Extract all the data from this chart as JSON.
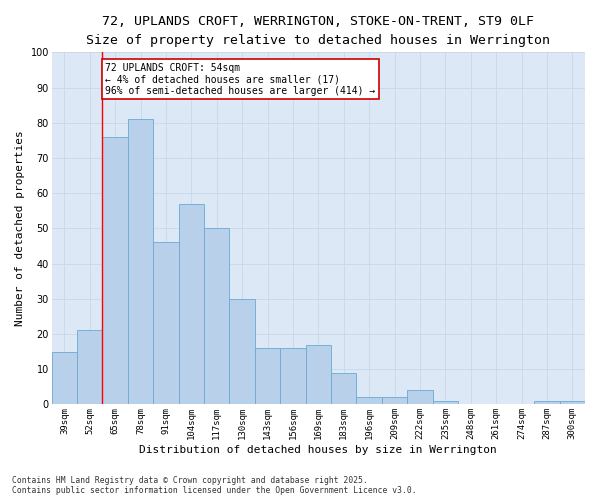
{
  "title_line1": "72, UPLANDS CROFT, WERRINGTON, STOKE-ON-TRENT, ST9 0LF",
  "title_line2": "Size of property relative to detached houses in Werrington",
  "xlabel": "Distribution of detached houses by size in Werrington",
  "ylabel": "Number of detached properties",
  "categories": [
    "39sqm",
    "52sqm",
    "65sqm",
    "78sqm",
    "91sqm",
    "104sqm",
    "117sqm",
    "130sqm",
    "143sqm",
    "156sqm",
    "169sqm",
    "183sqm",
    "196sqm",
    "209sqm",
    "222sqm",
    "235sqm",
    "248sqm",
    "261sqm",
    "274sqm",
    "287sqm",
    "300sqm"
  ],
  "values": [
    15,
    21,
    76,
    81,
    46,
    57,
    50,
    30,
    16,
    16,
    17,
    9,
    2,
    2,
    4,
    1,
    0,
    0,
    0,
    1,
    1
  ],
  "bar_color": "#b8d0ea",
  "bar_edge_color": "#6aaad4",
  "red_line_index": 1.5,
  "annotation_text": "72 UPLANDS CROFT: 54sqm\n← 4% of detached houses are smaller (17)\n96% of semi-detached houses are larger (414) →",
  "annotation_box_color": "#ffffff",
  "annotation_box_edge_color": "#cc0000",
  "ylim": [
    0,
    100
  ],
  "yticks": [
    0,
    10,
    20,
    30,
    40,
    50,
    60,
    70,
    80,
    90,
    100
  ],
  "grid_color": "#c8d8ea",
  "background_color": "#dce8f5",
  "footer_line1": "Contains HM Land Registry data © Crown copyright and database right 2025.",
  "footer_line2": "Contains public sector information licensed under the Open Government Licence v3.0.",
  "title_fontsize": 9.5,
  "subtitle_fontsize": 8.5,
  "tick_fontsize": 6.5,
  "ylabel_fontsize": 8,
  "xlabel_fontsize": 8,
  "annotation_fontsize": 7,
  "footer_fontsize": 5.8
}
